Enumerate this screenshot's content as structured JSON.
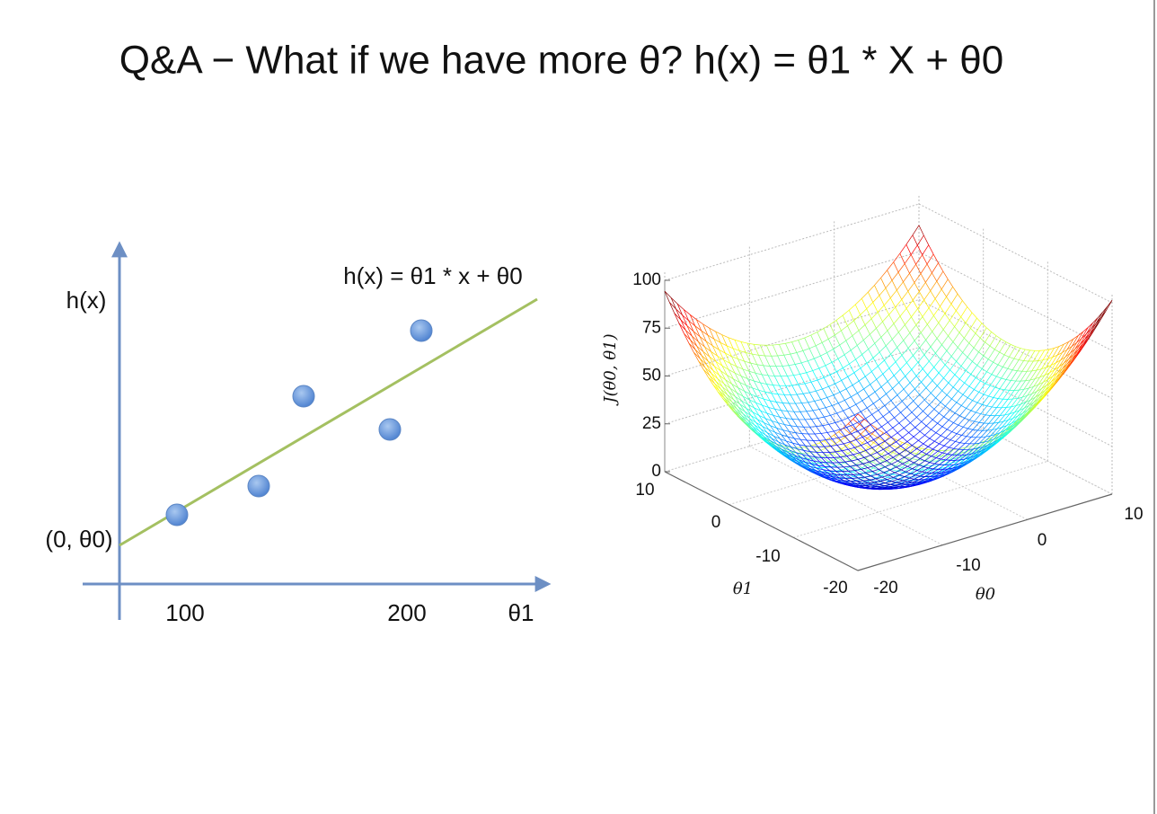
{
  "title": "Q&A − What if we have more θ? h(x) = θ1 * X + θ0",
  "left_diagram": {
    "y_label": "h(x)",
    "line_label": "h(x) = θ1 * x + θ0",
    "intercept_label": "(0, θ0)",
    "x_ticks": [
      "100",
      "200"
    ],
    "x_label": "θ1"
  },
  "surface_plot": {
    "z_label": "J(θ0, θ1)",
    "z_ticks": [
      "100",
      "75",
      "50",
      "25",
      "0"
    ],
    "theta1_ticks": [
      "10",
      "0",
      "-10",
      "-20"
    ],
    "theta1_label": "θ1",
    "theta0_ticks": [
      "-20",
      "-10",
      "0",
      "10"
    ],
    "theta0_label": "θ0"
  }
}
